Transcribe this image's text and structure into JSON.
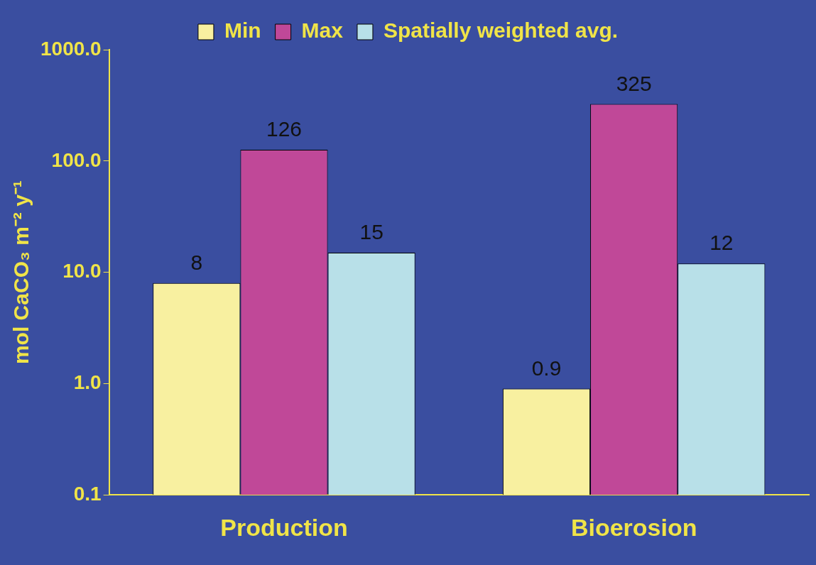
{
  "chart_data": {
    "type": "bar",
    "ylabel": "mol CaCO₃ m⁻² y⁻¹",
    "categories": [
      "Production",
      "Bioerosion"
    ],
    "series": [
      {
        "name": "Min",
        "color": "#f8f0a0",
        "values": [
          8,
          0.9
        ]
      },
      {
        "name": "Max",
        "color": "#c04898",
        "values": [
          126,
          325
        ]
      },
      {
        "name": "Spatially weighted avg.",
        "color": "#b8e0e8",
        "values": [
          15,
          12
        ]
      }
    ],
    "log": "y",
    "ylim": [
      0.1,
      1000
    ],
    "yticks": [
      {
        "value": 0.1,
        "label": "0.1"
      },
      {
        "value": 1,
        "label": "1.0"
      },
      {
        "value": 10,
        "label": "10.0"
      },
      {
        "value": 100,
        "label": "100.0"
      },
      {
        "value": 1000,
        "label": "1000.0"
      }
    ],
    "data_labels": true,
    "grid": false,
    "legend": "top"
  }
}
